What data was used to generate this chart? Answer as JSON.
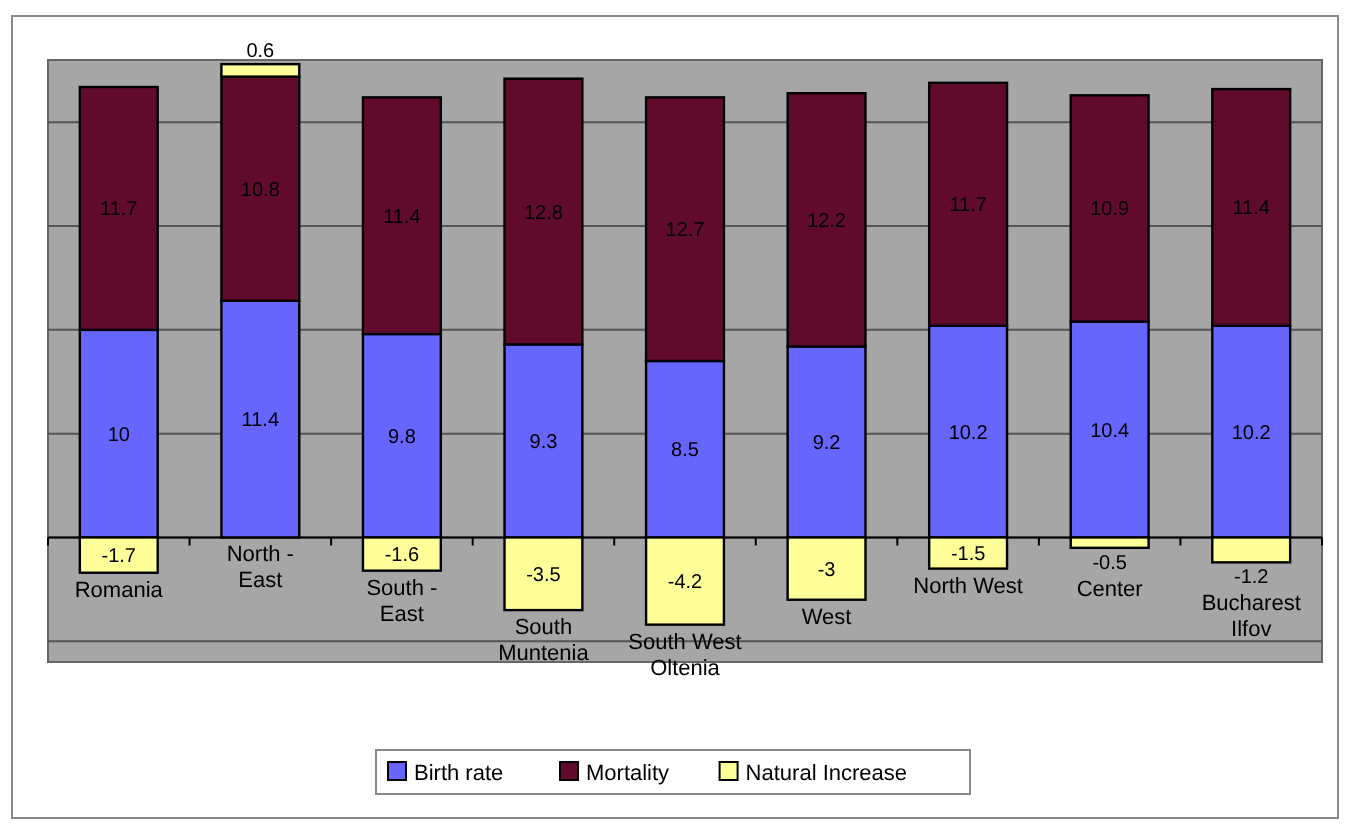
{
  "chart_data": {
    "type": "bar",
    "stacked": true,
    "categories": [
      "Romania",
      "North - East",
      "South - East",
      "South Muntenia",
      "South West Oltenia",
      "West",
      "North West",
      "Center",
      "Bucharest Ilfov"
    ],
    "series": [
      {
        "name": "Birth rate",
        "color": "#6666ff",
        "values": [
          10,
          11.4,
          9.8,
          9.3,
          8.5,
          9.2,
          10.2,
          10.4,
          10.2
        ]
      },
      {
        "name": "Mortality",
        "color": "#600a2c",
        "values": [
          11.7,
          10.8,
          11.4,
          12.8,
          12.7,
          12.2,
          11.7,
          10.9,
          11.4
        ]
      },
      {
        "name": "Natural Increase",
        "color": "#ffff99",
        "values": [
          -1.7,
          0.6,
          -1.6,
          -3.5,
          -4.2,
          -3,
          -1.5,
          -0.5,
          -1.2
        ]
      }
    ],
    "ylim": [
      -6,
      23
    ],
    "yticks": [
      {
        "value": -5,
        "label": null
      },
      {
        "value": 0,
        "label": null
      },
      {
        "value": 5,
        "label": null
      },
      {
        "value": 10,
        "label": null
      },
      {
        "value": 15,
        "label": null
      },
      {
        "value": 20,
        "label": null
      }
    ],
    "tick_labels": "x",
    "grid": "y",
    "data_labels": true,
    "legend": "bottom"
  }
}
